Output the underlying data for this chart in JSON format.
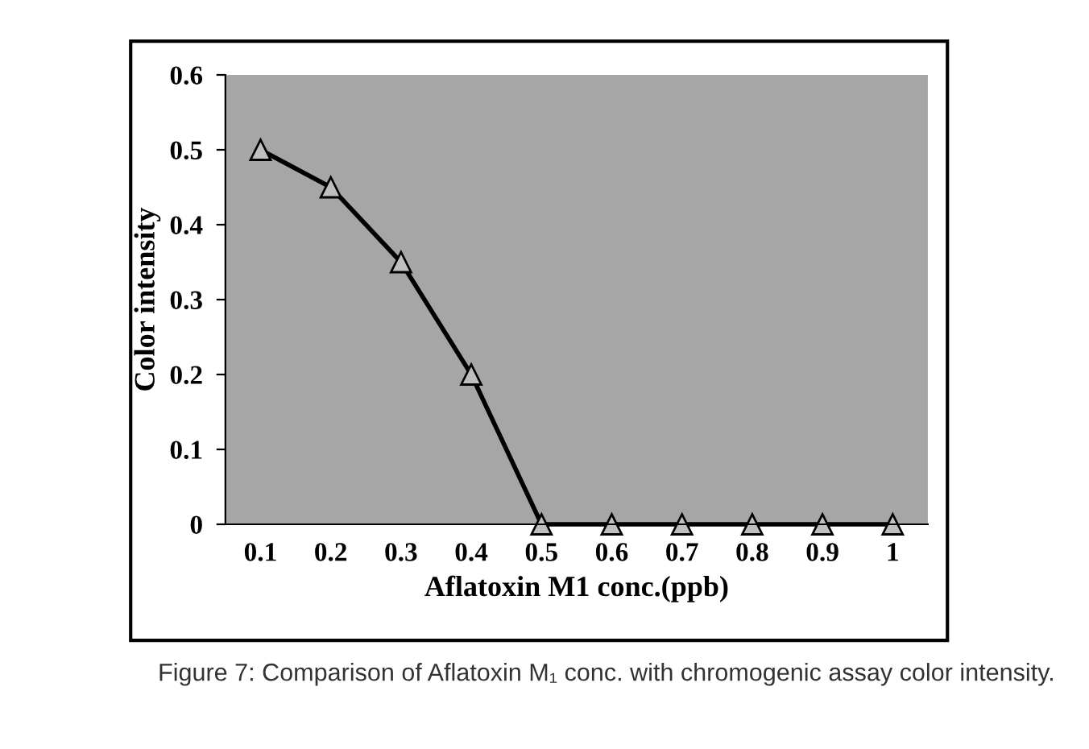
{
  "chart_data": {
    "type": "line",
    "xlabel": "Aflatoxin M1 conc.(ppb)",
    "ylabel": "Color intensity",
    "categories": [
      "0.1",
      "0.2",
      "0.3",
      "0.4",
      "0.5",
      "0.6",
      "0.7",
      "0.8",
      "0.9",
      "1"
    ],
    "values": [
      0.5,
      0.45,
      0.35,
      0.2,
      0,
      0,
      0,
      0,
      0,
      0
    ],
    "color": "#000000",
    "marker": "triangle",
    "line_style": "solid",
    "ylim": [
      0,
      0.6
    ],
    "yticks": [
      0,
      0.1,
      0.2,
      0.3,
      0.4,
      0.5,
      0.6
    ],
    "grid": false,
    "legend": false,
    "annotations": [
      "Figure 7: Comparison of Aflatoxin M₁ conc. with chromogenic assay color intensity."
    ]
  }
}
